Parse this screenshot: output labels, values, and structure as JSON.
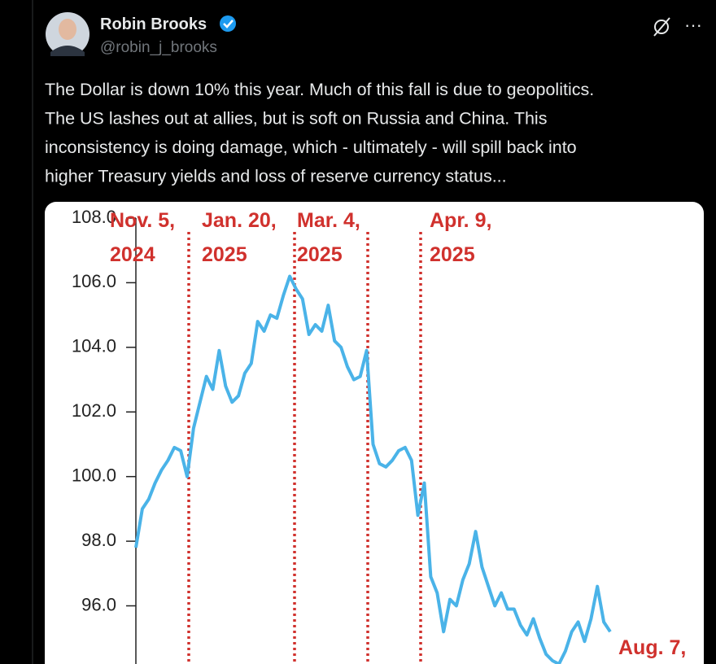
{
  "tweet": {
    "author": "Robin Brooks",
    "handle": "@robin_j_brooks",
    "text_lines": [
      "The Dollar is down 10% this year. Much of this fall is due to geopolitics.",
      "The US lashes out at allies, but is soft on Russia and China. This",
      "inconsistency is doing damage, which - ultimately - will spill back into",
      "higher Treasury yields and loss of reserve currency status..."
    ],
    "more": "···"
  },
  "chart_data": {
    "type": "line",
    "color": "#4ab3e8",
    "values": [
      97.8,
      99.0,
      99.3,
      99.8,
      100.2,
      100.5,
      100.9,
      100.8,
      100.0,
      101.5,
      102.3,
      103.1,
      102.7,
      103.9,
      102.8,
      102.3,
      102.5,
      103.2,
      103.5,
      104.8,
      104.5,
      105.0,
      104.9,
      105.6,
      106.2,
      105.8,
      105.5,
      104.4,
      104.7,
      104.5,
      105.3,
      104.2,
      104.0,
      103.4,
      103.0,
      103.1,
      103.9,
      101.0,
      100.4,
      100.3,
      100.5,
      100.8,
      100.9,
      100.5,
      98.8,
      99.8,
      96.9,
      96.4,
      95.2,
      96.2,
      96.0,
      96.8,
      97.3,
      98.3,
      97.2,
      96.6,
      96.0,
      96.4,
      95.9,
      95.9,
      95.4,
      95.1,
      95.6,
      95.0,
      94.5,
      94.3,
      94.2,
      94.6,
      95.2,
      95.5,
      94.9,
      95.6,
      96.6,
      95.5,
      95.2
    ],
    "ylim": [
      94.2,
      108.0
    ],
    "yticks": [
      {
        "value": 108,
        "label": "108.0"
      },
      {
        "value": 106,
        "label": "106.0"
      },
      {
        "value": 104,
        "label": "104.0"
      },
      {
        "value": 102,
        "label": "102.0"
      },
      {
        "value": 100,
        "label": "100.0"
      },
      {
        "value": 98,
        "label": "98.0"
      },
      {
        "value": 96,
        "label": "96.0"
      }
    ],
    "events": [
      {
        "label": [
          "Nov. 5,",
          "2024"
        ]
      },
      {
        "label": [
          "Jan. 20,",
          "2025"
        ]
      },
      {
        "label": [
          "Mar. 4,",
          "2025"
        ]
      },
      {
        "label": [
          "Apr. 9,",
          "2025"
        ]
      },
      {
        "label": [
          "Aug. 7,"
        ]
      }
    ]
  }
}
